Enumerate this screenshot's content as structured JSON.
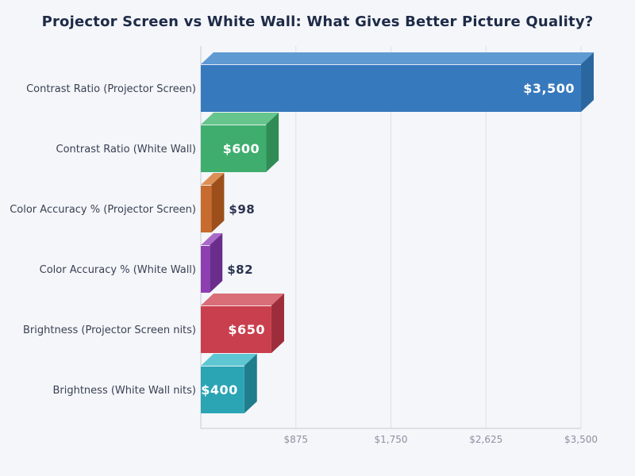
{
  "page": {
    "background": "#f4f6fa"
  },
  "chart_data": {
    "type": "bar",
    "orientation": "horizontal",
    "style": "3d-extruded-bars",
    "title": "Projector Screen vs White Wall: What Gives Better Picture Quality?",
    "xlabel": "",
    "ylabel": "",
    "xlim": [
      0,
      3500
    ],
    "grid": "vertical-gridlines-only",
    "legend": "none",
    "categories": [
      "Contrast Ratio (Projector Screen)",
      "Contrast Ratio (White Wall)",
      "Color Accuracy % (Projector Screen)",
      "Color Accuracy % (White Wall)",
      "Brightness (Projector Screen nits)",
      "Brightness (White Wall nits)"
    ],
    "values": [
      3500,
      600,
      98,
      82,
      650,
      400
    ],
    "value_labels": [
      "$3,500",
      "$600",
      "$98",
      "$82",
      "$650",
      "$400"
    ],
    "value_label_placement": [
      "inside",
      "inside",
      "outside",
      "outside",
      "inside",
      "inside"
    ],
    "bar_colors": [
      {
        "front": "#3779bd",
        "top": "#5f9ad3",
        "side": "#2b679f"
      },
      {
        "front": "#3fad6e",
        "top": "#65c58d",
        "side": "#2f8c55"
      },
      {
        "front": "#c76b2e",
        "top": "#dd9055",
        "side": "#9c4f1a"
      },
      {
        "front": "#8d3fb2",
        "top": "#aa69c9",
        "side": "#6a2d8c"
      },
      {
        "front": "#ca3f4e",
        "top": "#d96d78",
        "side": "#9e2d3c"
      },
      {
        "front": "#2ba4b4",
        "top": "#5ec7d3",
        "side": "#1f7d8c"
      }
    ],
    "x_ticks": [
      {
        "value": 875,
        "label": "$875"
      },
      {
        "value": 1750,
        "label": "$1,750"
      },
      {
        "value": 2625,
        "label": "$2,625"
      },
      {
        "value": 3500,
        "label": "$3,500"
      }
    ],
    "colors": {
      "title_text": "#1e2b47",
      "category_text": "#3a4153",
      "tick_text": "#8b91a0",
      "inside_value_text": "#ffffff",
      "outside_value_text": "#2a3350",
      "gridline": "#dde1e7",
      "axis_line": "#c6cbd3",
      "bar_highlight_edge": "rgba(255,255,255,0.85)"
    }
  }
}
